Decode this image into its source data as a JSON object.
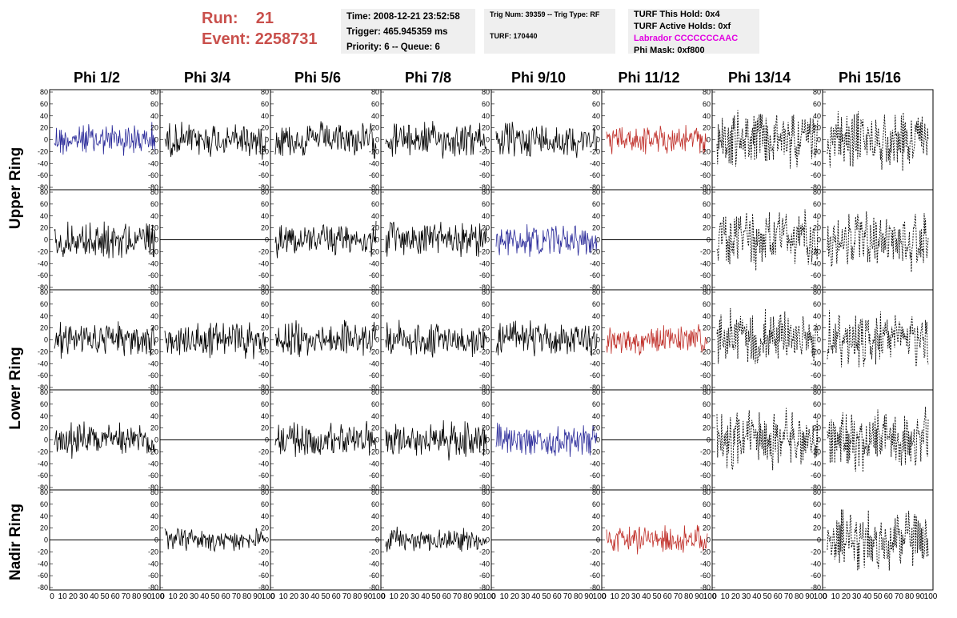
{
  "header": {
    "run_label": "Run:",
    "run_value": "21",
    "event_label": "Event:",
    "event_value": "2258731"
  },
  "info_time": {
    "time": "Time: 2008-12-21 23:52:58",
    "trigger": "Trigger: 465.945359 ms",
    "priority": "Priority: 6 -- Queue: 6"
  },
  "info_trig": {
    "trig": "Trig Num: 39359 -- Trig Type: RF",
    "turf": "TURF: 170440"
  },
  "info_turf": {
    "this_hold": "TURF This Hold: 0x4",
    "active_holds": "TURF Active Holds: 0xf",
    "labrador": "Labrador CCCCCCCAAC",
    "phi_mask": "Phi Mask: 0xf800"
  },
  "columns": [
    "Phi 1/2",
    "Phi 3/4",
    "Phi 5/6",
    "Phi 7/8",
    "Phi 9/10",
    "Phi 11/12",
    "Phi 13/14",
    "Phi 15/16"
  ],
  "rings": [
    "Upper Ring",
    "Lower Ring",
    "Nadir Ring"
  ],
  "y_ticks": [
    "80",
    "60",
    "40",
    "20",
    "0",
    "-20",
    "-40",
    "-60",
    "-80"
  ],
  "x_ticks": [
    "0",
    "10",
    "20",
    "30",
    "40",
    "50",
    "60",
    "70",
    "80",
    "90",
    "100"
  ],
  "colors": {
    "blue": "#2b2b9a",
    "red": "#c0302a",
    "black": "#000000",
    "magenta": "#e100e1",
    "run_text": "#c9504c"
  },
  "panels": [
    [
      "blue",
      "black",
      "black",
      "black",
      "black",
      "red",
      "dashed",
      "dashed"
    ],
    [
      "black",
      "flat",
      "black",
      "black",
      "blue",
      "flat",
      "dashed",
      "dashed"
    ],
    [
      "black",
      "black",
      "black",
      "black",
      "black",
      "red",
      "dashed",
      "dashed"
    ],
    [
      "black",
      "flat",
      "black",
      "black",
      "blue",
      "flat",
      "dashed",
      "dashed"
    ],
    [
      "flat",
      "black",
      "flat",
      "black",
      "flat",
      "red",
      "flat",
      "dashed"
    ]
  ]
}
